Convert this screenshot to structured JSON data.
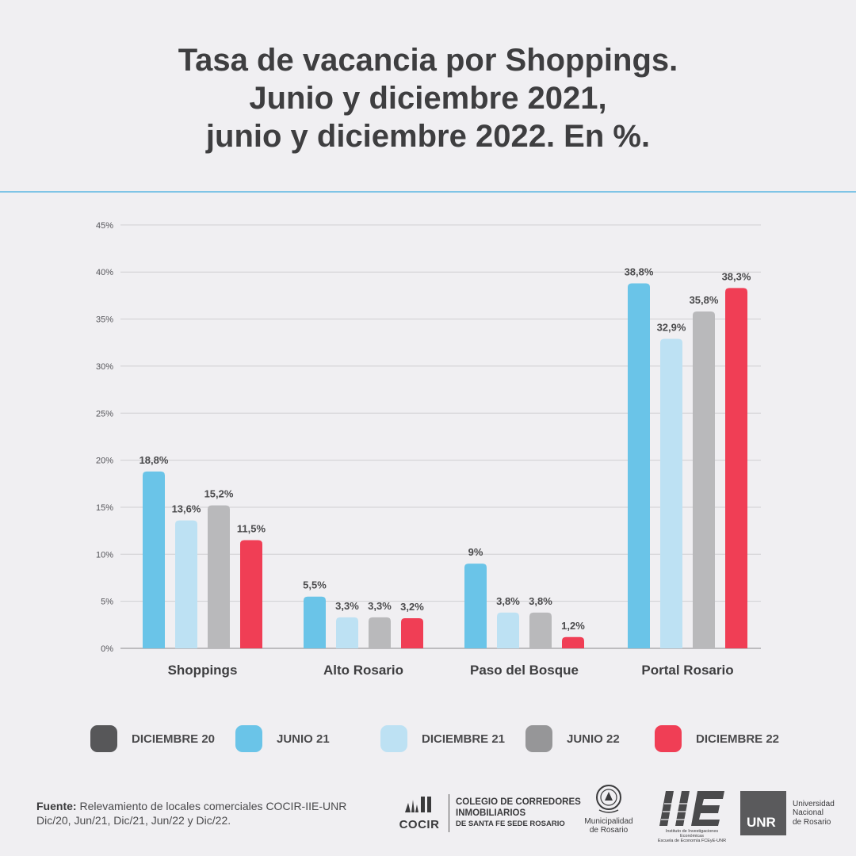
{
  "title": {
    "line1": "Tasa de vacancia por Shoppings.",
    "line2": "Junio y diciembre 2021,",
    "line3": "junio y diciembre 2022. En %."
  },
  "chart_data": {
    "type": "bar",
    "categories": [
      "Shoppings",
      "Alto Rosario",
      "Paso del Bosque",
      "Portal Rosario"
    ],
    "y_ticks": [
      "0%",
      "5%",
      "10%",
      "15%",
      "20%",
      "25%",
      "30%",
      "35%",
      "40%",
      "45%"
    ],
    "ylim": [
      0,
      45
    ],
    "grid": true,
    "legend_position": "bottom",
    "series": [
      {
        "name": "DICIEMBRE 20",
        "color": "#575759",
        "values": [
          null,
          null,
          null,
          null
        ],
        "labels": [
          "",
          "",
          "",
          ""
        ]
      },
      {
        "name": "JUNIO 21",
        "color": "#6ac4e8",
        "values": [
          18.8,
          5.5,
          9,
          38.8
        ],
        "labels": [
          "18,8%",
          "5,5%",
          "9%",
          "38,8%"
        ]
      },
      {
        "name": "DICIEMBRE 21",
        "color": "#bde1f3",
        "values": [
          13.6,
          3.3,
          3.8,
          32.9
        ],
        "labels": [
          "13,6%",
          "3,3%",
          "3,8%",
          "32,9%"
        ]
      },
      {
        "name": "JUNIO 22",
        "color": "#b9b9bb",
        "values": [
          15.2,
          3.3,
          3.8,
          35.8
        ],
        "labels": [
          "15,2%",
          "3,3%",
          "3,8%",
          "35,8%"
        ]
      },
      {
        "name": "DICIEMBRE 22",
        "color": "#f03e55",
        "values": [
          11.5,
          3.2,
          1.2,
          38.3
        ],
        "labels": [
          "11,5%",
          "3,2%",
          "1,2%",
          "38,3%"
        ]
      }
    ]
  },
  "footer": {
    "source_label": "Fuente:",
    "source_text": " Relevamiento de locales comerciales COCIR-IIE-UNR",
    "source_dates": "Dic/20, Jun/21, Dic/21, Jun/22 y Dic/22."
  },
  "logos": {
    "cocir_word": "COCIR",
    "cocir_line1": "COLEGIO DE CORREDORES",
    "cocir_line2": "INMOBILIARIOS",
    "cocir_line3": "DE SANTA FE SEDE ROSARIO",
    "muni_line1": "Municipalidad",
    "muni_line2": "de Rosario",
    "iie_line1": "Instituto de Investigaciones Económicas",
    "iie_line2": "Escuela de Economía FCEyE-UNR",
    "unr_box": "UNR",
    "unr_line1": "Universidad",
    "unr_line2": "Nacional",
    "unr_line3": "de Rosario"
  }
}
